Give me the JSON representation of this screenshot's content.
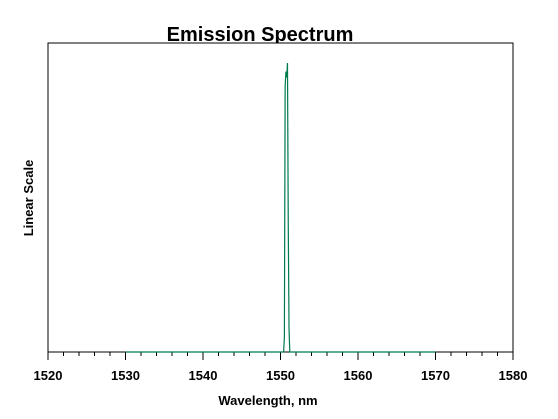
{
  "chart_data": {
    "type": "line",
    "title": "Emission Spectrum",
    "xlabel": "Wavelength, nm",
    "ylabel": "Linear Scale",
    "xlim": [
      1520,
      1580
    ],
    "x_ticks": [
      1520,
      1530,
      1540,
      1550,
      1560,
      1570,
      1580
    ],
    "x_minor_step": 2,
    "ylim": [
      0,
      1
    ],
    "grid": false,
    "series": [
      {
        "color": "#007a4d",
        "x": [
          1530,
          1550.4,
          1550.5,
          1550.6,
          1550.7,
          1550.8,
          1550.9,
          1551.0,
          1551.1,
          1551.2,
          1551.4,
          1570
        ],
        "y": [
          0,
          0,
          0.05,
          0.92,
          0.97,
          0.95,
          1.0,
          0.45,
          0.08,
          0,
          0,
          0
        ]
      }
    ]
  }
}
